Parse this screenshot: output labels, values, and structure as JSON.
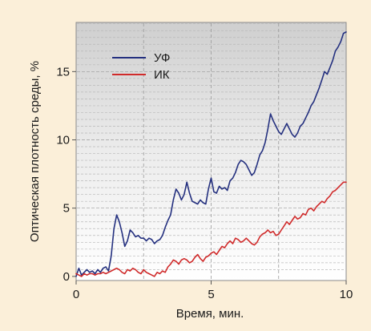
{
  "chart_data": {
    "type": "line",
    "xlabel": "Время, мин.",
    "ylabel": "Оптическая плотность среды, %",
    "xlim": [
      0,
      10
    ],
    "ylim": [
      -0.3,
      18.6
    ],
    "xticks": [
      0,
      5,
      10
    ],
    "yticks": [
      0,
      5,
      10,
      15
    ],
    "grid": "horizontal dashed, vertical dashed at x=2.5, 5, 7.5",
    "legend_position": "top-left",
    "series": [
      {
        "name": "УФ",
        "color": "#24307f",
        "x": [
          0,
          0.1,
          0.2,
          0.3,
          0.4,
          0.5,
          0.6,
          0.7,
          0.8,
          0.9,
          1.0,
          1.1,
          1.2,
          1.3,
          1.4,
          1.5,
          1.6,
          1.7,
          1.8,
          1.9,
          2.0,
          2.1,
          2.2,
          2.3,
          2.4,
          2.5,
          2.6,
          2.7,
          2.8,
          2.9,
          3.0,
          3.1,
          3.2,
          3.3,
          3.4,
          3.5,
          3.6,
          3.7,
          3.8,
          3.9,
          4.0,
          4.1,
          4.2,
          4.3,
          4.4,
          4.5,
          4.6,
          4.7,
          4.8,
          4.9,
          5.0,
          5.1,
          5.2,
          5.3,
          5.4,
          5.5,
          5.6,
          5.7,
          5.8,
          5.9,
          6.0,
          6.1,
          6.2,
          6.3,
          6.4,
          6.5,
          6.6,
          6.7,
          6.8,
          6.9,
          7.0,
          7.1,
          7.2,
          7.3,
          7.4,
          7.5,
          7.6,
          7.7,
          7.8,
          7.9,
          8.0,
          8.1,
          8.2,
          8.3,
          8.4,
          8.5,
          8.6,
          8.7,
          8.8,
          8.9,
          9.0,
          9.1,
          9.2,
          9.3,
          9.4,
          9.5,
          9.6,
          9.7,
          9.8,
          9.9,
          10.0
        ],
        "values": [
          0.0,
          0.6,
          0.1,
          0.3,
          0.5,
          0.3,
          0.4,
          0.2,
          0.5,
          0.3,
          0.6,
          0.7,
          0.4,
          1.5,
          3.5,
          4.5,
          4.0,
          3.2,
          2.2,
          2.6,
          3.4,
          3.2,
          2.9,
          3.0,
          2.8,
          2.8,
          2.6,
          2.8,
          2.7,
          2.4,
          2.6,
          2.7,
          3.0,
          3.6,
          4.1,
          4.5,
          5.6,
          6.4,
          6.1,
          5.6,
          6.0,
          6.9,
          6.1,
          5.5,
          5.4,
          5.3,
          5.6,
          5.4,
          5.3,
          6.4,
          7.2,
          6.2,
          6.1,
          6.6,
          6.4,
          6.5,
          6.3,
          7.0,
          7.2,
          7.6,
          8.2,
          8.5,
          8.4,
          8.2,
          7.8,
          7.4,
          7.6,
          8.2,
          8.9,
          9.2,
          9.8,
          10.8,
          11.9,
          11.4,
          11.0,
          10.6,
          10.4,
          10.8,
          11.2,
          10.8,
          10.4,
          10.2,
          10.5,
          11.0,
          11.2,
          11.6,
          12.0,
          12.5,
          12.8,
          13.3,
          13.8,
          14.4,
          15.0,
          14.8,
          15.3,
          15.8,
          16.5,
          16.8,
          17.2,
          17.8,
          17.9
        ]
      },
      {
        "name": "ИК",
        "color": "#d02b2b",
        "x": [
          0,
          0.1,
          0.2,
          0.3,
          0.4,
          0.5,
          0.6,
          0.7,
          0.8,
          0.9,
          1.0,
          1.1,
          1.2,
          1.3,
          1.4,
          1.5,
          1.6,
          1.7,
          1.8,
          1.9,
          2.0,
          2.1,
          2.2,
          2.3,
          2.4,
          2.5,
          2.6,
          2.7,
          2.8,
          2.9,
          3.0,
          3.1,
          3.2,
          3.3,
          3.4,
          3.5,
          3.6,
          3.7,
          3.8,
          3.9,
          4.0,
          4.1,
          4.2,
          4.3,
          4.4,
          4.5,
          4.6,
          4.7,
          4.8,
          4.9,
          5.0,
          5.1,
          5.2,
          5.3,
          5.4,
          5.5,
          5.6,
          5.7,
          5.8,
          5.9,
          6.0,
          6.1,
          6.2,
          6.3,
          6.4,
          6.5,
          6.6,
          6.7,
          6.8,
          6.9,
          7.0,
          7.1,
          7.2,
          7.3,
          7.4,
          7.5,
          7.6,
          7.7,
          7.8,
          7.9,
          8.0,
          8.1,
          8.2,
          8.3,
          8.4,
          8.5,
          8.6,
          8.7,
          8.8,
          8.9,
          9.0,
          9.1,
          9.2,
          9.3,
          9.4,
          9.5,
          9.6,
          9.7,
          9.8,
          9.9,
          10.0
        ],
        "values": [
          0.2,
          0.1,
          0.0,
          0.2,
          0.1,
          0.2,
          0.2,
          0.1,
          0.2,
          0.2,
          0.3,
          0.2,
          0.3,
          0.4,
          0.5,
          0.6,
          0.5,
          0.3,
          0.2,
          0.5,
          0.4,
          0.6,
          0.5,
          0.3,
          0.2,
          0.5,
          0.3,
          0.2,
          0.1,
          0.0,
          0.3,
          0.2,
          0.4,
          0.3,
          0.7,
          0.9,
          1.2,
          1.1,
          0.9,
          1.2,
          1.3,
          1.2,
          1.0,
          1.1,
          1.4,
          1.6,
          1.3,
          1.1,
          1.4,
          1.5,
          1.7,
          1.8,
          1.6,
          1.9,
          2.2,
          2.1,
          2.4,
          2.6,
          2.4,
          2.8,
          2.7,
          2.5,
          2.6,
          2.8,
          2.6,
          2.4,
          2.3,
          2.5,
          2.9,
          3.1,
          3.2,
          3.4,
          3.2,
          3.3,
          3.0,
          3.1,
          3.4,
          3.7,
          4.0,
          3.8,
          4.1,
          4.4,
          4.2,
          4.3,
          4.6,
          4.5,
          4.9,
          5.0,
          4.8,
          5.1,
          5.3,
          5.5,
          5.4,
          5.7,
          5.9,
          6.2,
          6.3,
          6.5,
          6.7,
          6.9,
          6.9
        ]
      }
    ]
  }
}
